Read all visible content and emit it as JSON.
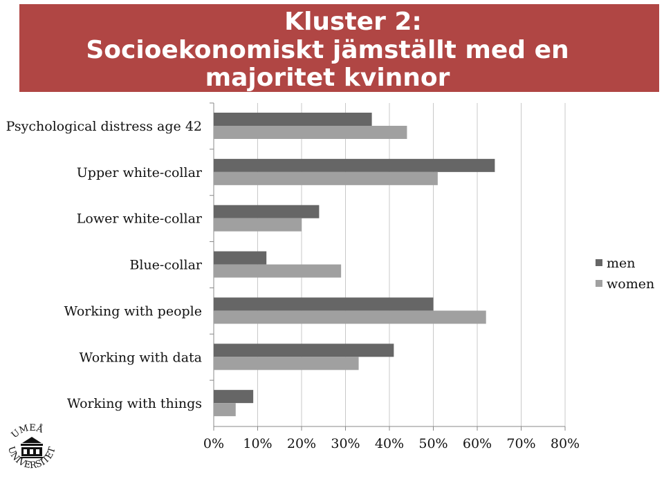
{
  "title": {
    "line1": "Kluster 2:",
    "line2": "Socioekonomiskt jämställt med en",
    "line3": "majoritet kvinnor"
  },
  "logo_text": "UMEÅ UNIVERSITET",
  "colors": {
    "banner": "#b04644",
    "men": "#666666",
    "women": "#a0a0a0",
    "grid": "#c8c8c8"
  },
  "chart_data": {
    "type": "bar",
    "orientation": "horizontal",
    "categories": [
      "Psychological distress age 42",
      "Upper white-collar",
      "Lower white-collar",
      "Blue-collar",
      "Working with people",
      "Working with data",
      "Working with things"
    ],
    "series": [
      {
        "name": "men",
        "values": [
          36,
          64,
          24,
          12,
          50,
          41,
          9
        ]
      },
      {
        "name": "women",
        "values": [
          44,
          51,
          20,
          29,
          62,
          33,
          5
        ]
      }
    ],
    "xlim": [
      0,
      80
    ],
    "xticks": [
      "0%",
      "10%",
      "20%",
      "30%",
      "40%",
      "50%",
      "60%",
      "70%",
      "80%"
    ],
    "grid": true,
    "legend_position": "right"
  }
}
